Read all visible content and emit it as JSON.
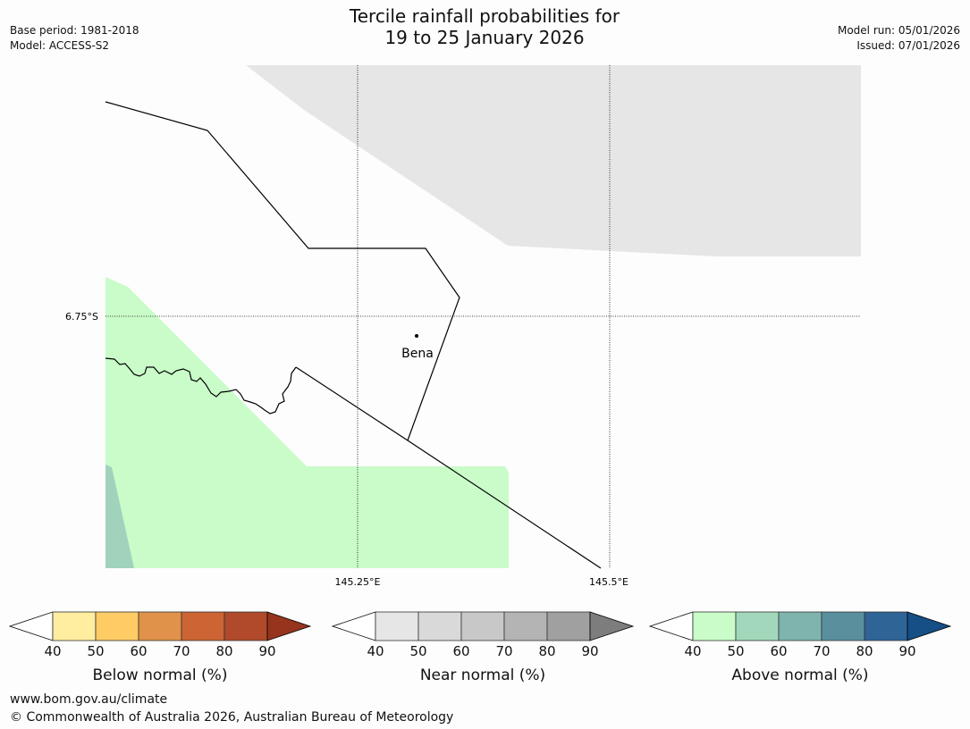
{
  "title": {
    "line1": "Tercile rainfall probabilities for",
    "line2": "19 to 25 January 2026"
  },
  "meta_left": {
    "base_period": "Base period: 1981-2018",
    "model": "Model: ACCESS-S2"
  },
  "meta_right": {
    "model_run": "Model run: 05/01/2026",
    "issued": "Issued: 07/01/2026"
  },
  "map": {
    "lat_label": "6.75°S",
    "lon_labels": [
      "145.25°E",
      "145.5°E"
    ],
    "place_label": "Bena"
  },
  "colorbars": {
    "ticks": [
      "40",
      "50",
      "60",
      "70",
      "80",
      "90"
    ],
    "below": {
      "label": "Below normal (%)",
      "colors": [
        "#ffffff",
        "#ffeda0",
        "#fecb64",
        "#e0924a",
        "#cc6433",
        "#b04a2a",
        "#96341e"
      ]
    },
    "near": {
      "label": "Near normal (%)",
      "colors": [
        "#ffffff",
        "#e6e6e6",
        "#d9d9d9",
        "#c8c8c8",
        "#b4b4b4",
        "#a0a0a0",
        "#7d7d7d"
      ]
    },
    "above": {
      "label": "Above normal (%)",
      "colors": [
        "#ffffff",
        "#c9fcc9",
        "#a3d7bb",
        "#7fb4ae",
        "#5a909e",
        "#2e6496",
        "#164e86"
      ]
    }
  },
  "colors": {
    "near_shade": "#e6e6e6",
    "above_shade_1": "#c9fcc9",
    "above_shade_2": "#a0d2bc"
  },
  "footer": {
    "url": "www.bom.gov.au/climate",
    "copyright": "© Commonwealth of Australia 2026, Australian Bureau of Meteorology"
  }
}
